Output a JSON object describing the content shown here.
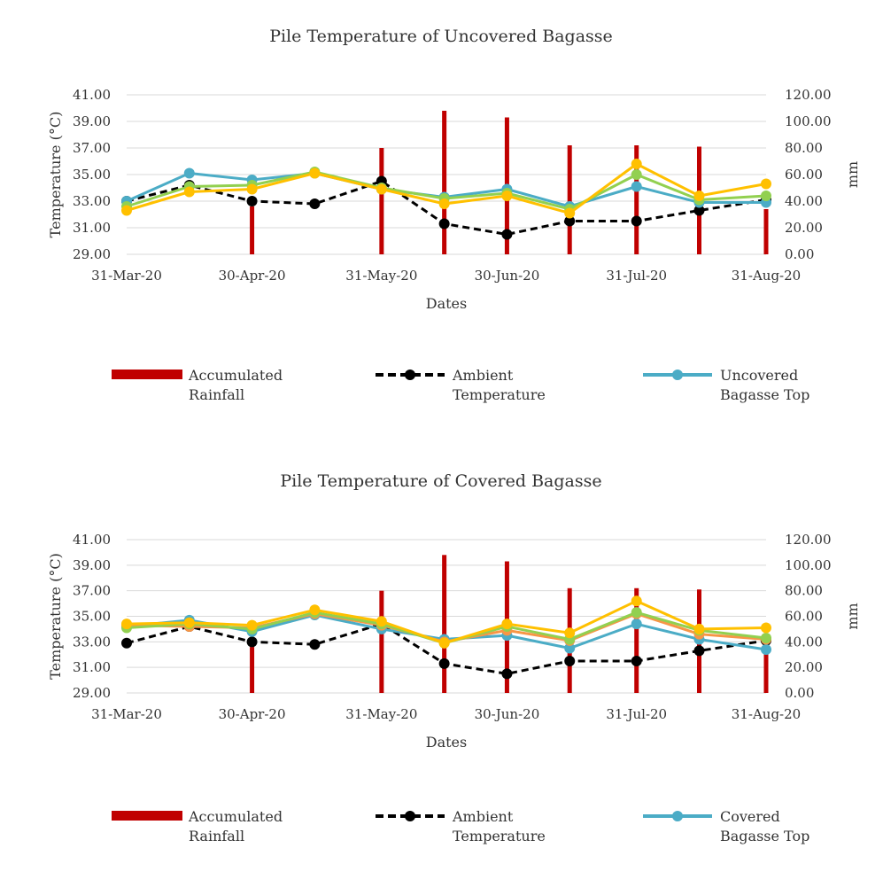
{
  "chart_data": [
    {
      "type": "line",
      "title": "Pile Temperature of Uncovered Bagasse",
      "xlabel": "Dates",
      "ylabel": "Temperature (°C)",
      "y2label": "mm",
      "ylim": [
        29,
        41
      ],
      "y2lim": [
        0,
        120
      ],
      "y_ticks": [
        "29.00",
        "31.00",
        "33.00",
        "35.00",
        "37.00",
        "39.00",
        "41.00"
      ],
      "y2_ticks": [
        "0.00",
        "20.00",
        "40.00",
        "60.00",
        "80.00",
        "100.00",
        "120.00"
      ],
      "x_tick_labels": [
        "31-Mar-20",
        "30-Apr-20",
        "31-May-20",
        "30-Jun-20",
        "31-Jul-20",
        "31-Aug-20"
      ],
      "x": [
        "2020-03-31",
        "2020-04-15",
        "2020-04-30",
        "2020-05-15",
        "2020-05-31",
        "2020-06-15",
        "2020-06-30",
        "2020-07-15",
        "2020-07-31",
        "2020-08-15",
        "2020-08-31"
      ],
      "rainfall": [
        0,
        0,
        36,
        0,
        80,
        108,
        103,
        82,
        82,
        81,
        34
      ],
      "series": [
        {
          "name": "Ambient Temperature",
          "color": "#000000",
          "style": "dashed",
          "values": [
            33.0,
            34.2,
            33.0,
            32.8,
            34.5,
            31.3,
            30.5,
            31.5,
            31.5,
            32.3,
            33.1
          ]
        },
        {
          "name": "Uncovered Bagasse Top",
          "color": "#4bacc6",
          "style": "solid",
          "values": [
            33.0,
            35.1,
            34.6,
            35.1,
            33.9,
            33.3,
            33.9,
            32.6,
            34.1,
            32.9,
            32.9
          ]
        },
        {
          "color": "#92d050",
          "style": "solid",
          "values": [
            32.6,
            34.1,
            34.2,
            35.2,
            34.0,
            33.2,
            33.6,
            32.4,
            35.0,
            33.1,
            33.4
          ]
        },
        {
          "color": "#ffc000",
          "style": "solid",
          "values": [
            32.3,
            33.7,
            33.9,
            35.1,
            33.9,
            32.8,
            33.4,
            32.1,
            35.8,
            33.4,
            34.3
          ]
        }
      ],
      "legend": [
        "Accumulated Rainfall",
        "Ambient Temperature",
        "Uncovered Bagasse Top"
      ],
      "legend_position": "bottom",
      "colors": {
        "rainfall": "#c00000",
        "grid": "#d9d9d9"
      }
    },
    {
      "type": "line",
      "title": "Pile Temperature of Covered Bagasse",
      "xlabel": "Dates",
      "ylabel": "Temperature (°C)",
      "y2label": "mm",
      "ylim": [
        29,
        41
      ],
      "y2lim": [
        0,
        120
      ],
      "y_ticks": [
        "29.00",
        "31.00",
        "33.00",
        "35.00",
        "37.00",
        "39.00",
        "41.00"
      ],
      "y2_ticks": [
        "0.00",
        "20.00",
        "40.00",
        "60.00",
        "80.00",
        "100.00",
        "120.00"
      ],
      "x_tick_labels": [
        "31-Mar-20",
        "30-Apr-20",
        "31-May-20",
        "30-Jun-20",
        "31-Jul-20",
        "31-Aug-20"
      ],
      "x": [
        "2020-03-31",
        "2020-04-15",
        "2020-04-30",
        "2020-05-15",
        "2020-05-31",
        "2020-06-15",
        "2020-06-30",
        "2020-07-15",
        "2020-07-31",
        "2020-08-15",
        "2020-08-31"
      ],
      "rainfall": [
        0,
        0,
        36,
        0,
        80,
        108,
        103,
        82,
        82,
        81,
        34
      ],
      "series": [
        {
          "name": "Ambient Temperature",
          "color": "#000000",
          "style": "dashed",
          "values": [
            32.9,
            34.2,
            33.0,
            32.8,
            34.4,
            31.3,
            30.5,
            31.5,
            31.5,
            32.3,
            33.1
          ]
        },
        {
          "name": "Covered Bagasse Top",
          "color": "#4bacc6",
          "style": "solid",
          "values": [
            34.2,
            34.7,
            33.8,
            35.1,
            34.0,
            33.2,
            33.5,
            32.5,
            34.4,
            33.2,
            32.4
          ]
        },
        {
          "color": "#f79646",
          "style": "solid",
          "values": [
            34.3,
            34.2,
            34.1,
            35.2,
            34.3,
            33.0,
            33.9,
            33.1,
            35.2,
            33.6,
            33.2
          ]
        },
        {
          "color": "#92d050",
          "style": "solid",
          "values": [
            34.1,
            34.4,
            34.0,
            35.3,
            34.4,
            32.9,
            34.2,
            33.2,
            35.3,
            33.9,
            33.3
          ]
        },
        {
          "color": "#ffc000",
          "style": "solid",
          "values": [
            34.4,
            34.5,
            34.3,
            35.5,
            34.6,
            32.9,
            34.4,
            33.7,
            36.2,
            34.0,
            34.1
          ]
        }
      ],
      "legend": [
        "Accumulated Rainfall",
        "Ambient Temperature",
        "Covered Bagasse Top"
      ],
      "legend_position": "bottom",
      "colors": {
        "rainfall": "#c00000",
        "grid": "#d9d9d9"
      }
    }
  ]
}
